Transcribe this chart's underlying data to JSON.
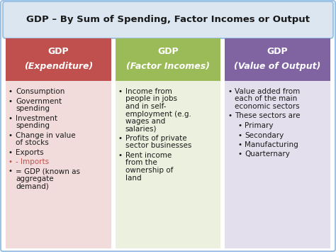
{
  "title": "GDP – By Sum of Spending, Factor Incomes or Output",
  "title_bg": "#dce6f1",
  "title_border": "#9dc3e6",
  "title_fontsize": 9.5,
  "columns": [
    {
      "header_line1": "GDP",
      "header_line2": "(Expenditure)",
      "header_bg": "#c0504d",
      "body_bg": "#f2dcdb",
      "header_color": "#ffffff",
      "items": [
        {
          "text": "Consumption",
          "color": "#1a1a1a",
          "indent": 0
        },
        {
          "text": "Government\nspending",
          "color": "#1a1a1a",
          "indent": 0
        },
        {
          "text": "Investment\nspending",
          "color": "#1a1a1a",
          "indent": 0
        },
        {
          "text": "Change in value\nof stocks",
          "color": "#1a1a1a",
          "indent": 0
        },
        {
          "text": "Exports",
          "color": "#1a1a1a",
          "indent": 0
        },
        {
          "text": "- Imports",
          "color": "#c0504d",
          "indent": 0,
          "bullet_color": "#c0504d"
        },
        {
          "text": "= GDP (known as\naggregate\ndemand)",
          "color": "#1a1a1a",
          "indent": 0
        }
      ]
    },
    {
      "header_line1": "GDP",
      "header_line2": "(Factor Incomes)",
      "header_bg": "#9bbb59",
      "body_bg": "#ebf1de",
      "header_color": "#ffffff",
      "items": [
        {
          "text": "Income from\npeople in jobs\nand in self-\nemployment (e.g.\nwages and\nsalaries)",
          "color": "#1a1a1a",
          "indent": 0
        },
        {
          "text": "Profits of private\nsector businesses",
          "color": "#1a1a1a",
          "indent": 0
        },
        {
          "text": "Rent income\nfrom the\nownership of\nland",
          "color": "#1a1a1a",
          "indent": 0
        }
      ]
    },
    {
      "header_line1": "GDP",
      "header_line2": "(Value of Output)",
      "header_bg": "#8064a2",
      "body_bg": "#e4dfec",
      "header_color": "#ffffff",
      "items": [
        {
          "text": "Value added from\neach of the main\neconomic sectors",
          "color": "#1a1a1a",
          "indent": 0
        },
        {
          "text": "These sectors are",
          "color": "#1a1a1a",
          "indent": 0
        },
        {
          "text": "Primary",
          "color": "#1a1a1a",
          "indent": 1
        },
        {
          "text": "Secondary",
          "color": "#1a1a1a",
          "indent": 1
        },
        {
          "text": "Manufacturing",
          "color": "#1a1a1a",
          "indent": 1
        },
        {
          "text": "Quarternary",
          "color": "#1a1a1a",
          "indent": 1
        }
      ]
    }
  ],
  "fig_bg": "#ffffff",
  "outer_border_color": "#9dc3e6",
  "body_fontsize": 7.5,
  "header_fontsize": 9.0
}
